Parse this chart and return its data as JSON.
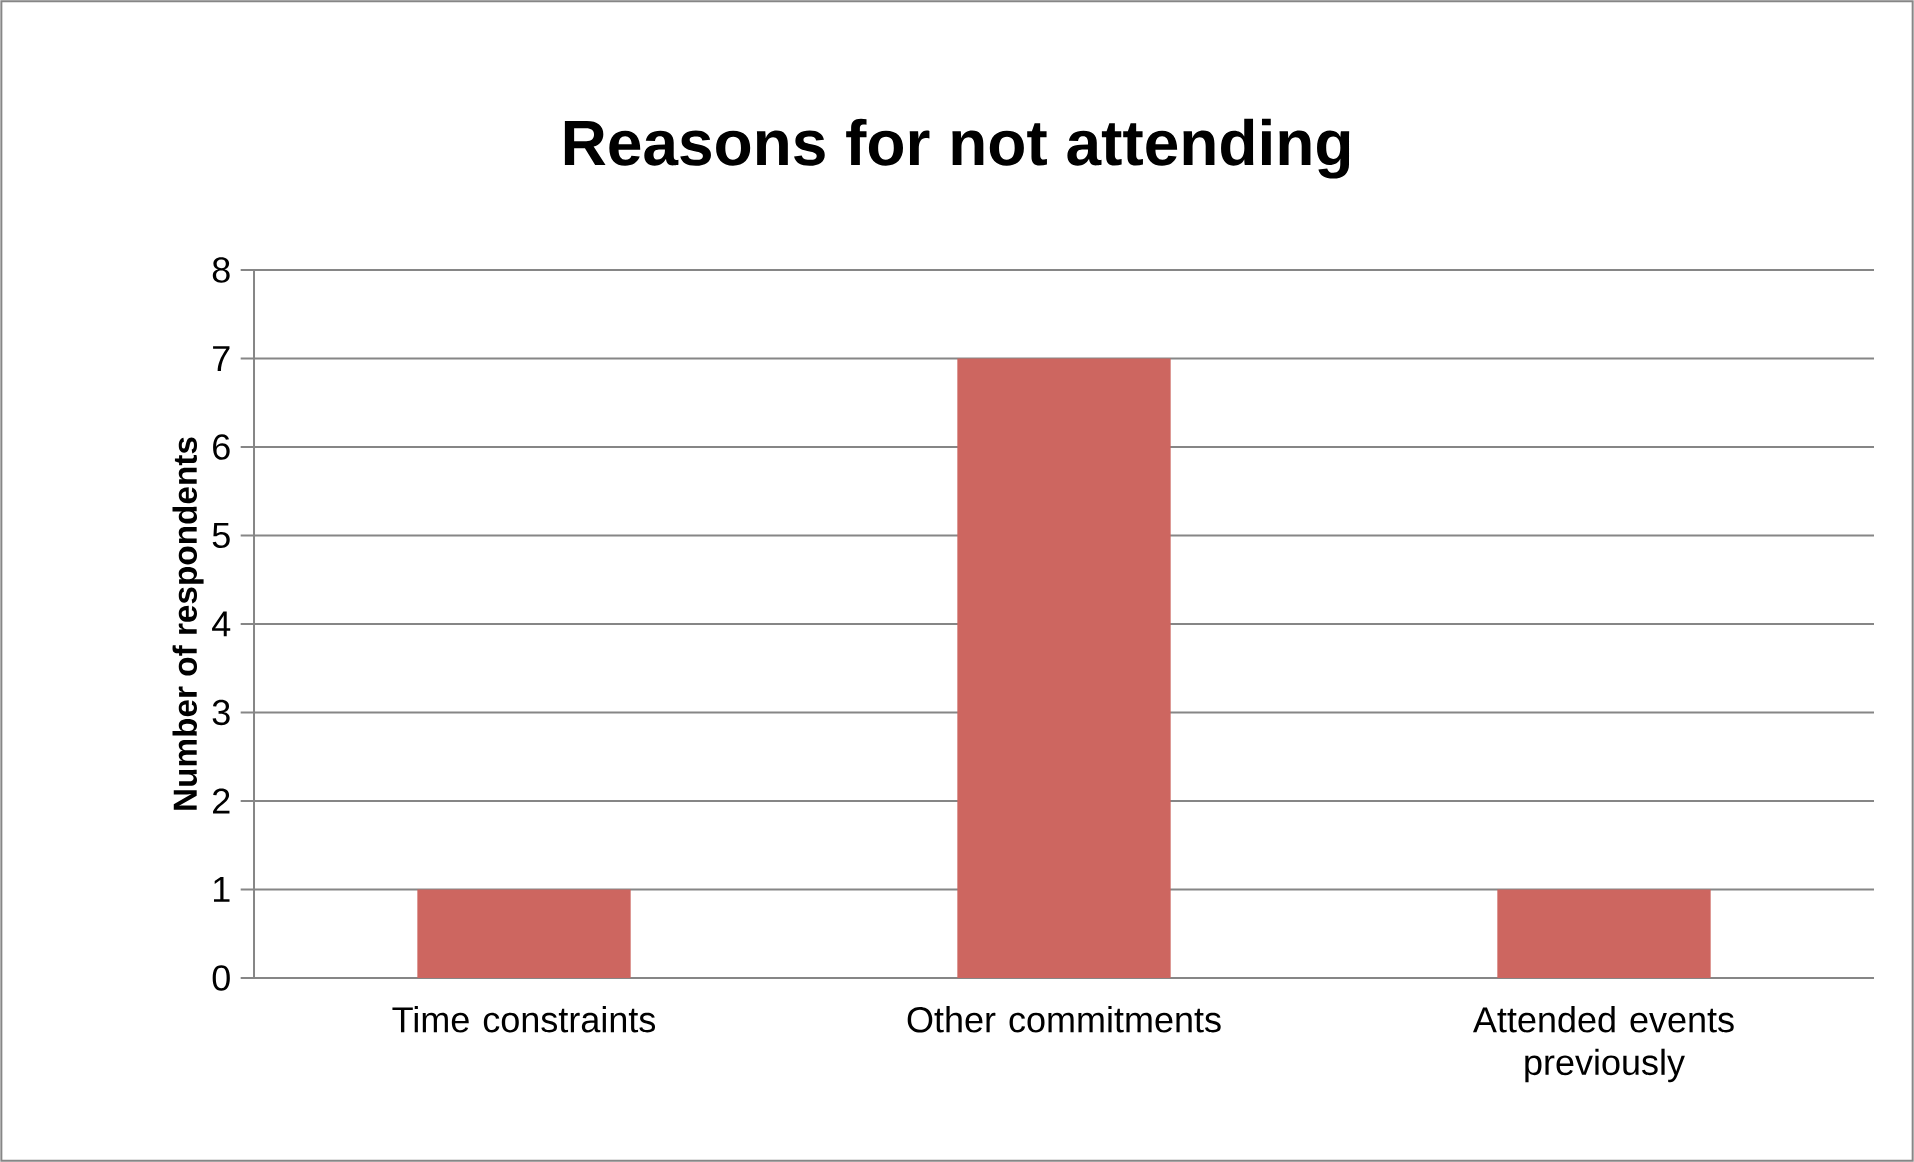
{
  "chart_data": {
    "type": "bar",
    "title": "Reasons for not attending",
    "ylabel": "Number of respondents",
    "categories": [
      "Time constraints",
      "Other commitments",
      "Attended events previously"
    ],
    "values": [
      1,
      7,
      1
    ],
    "color": "#cd6660",
    "ylim": [
      0,
      8
    ],
    "yticks": [
      0,
      1,
      2,
      3,
      4,
      5,
      6,
      7,
      8
    ],
    "grid": "y"
  }
}
